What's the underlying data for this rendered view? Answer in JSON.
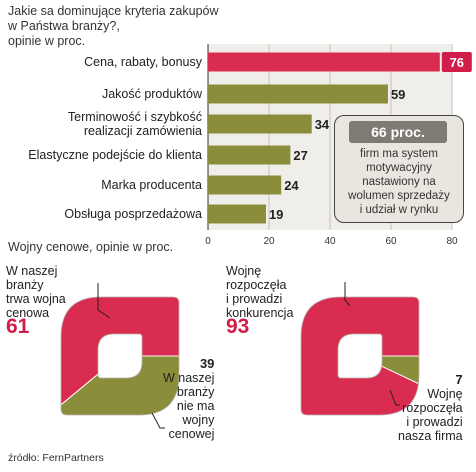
{
  "chart_data": [
    {
      "type": "bar",
      "title": "Jakie sa dominujące kryteria zakupów w Państwa branży?, opinie w proc.",
      "title_lines": [
        "Jakie sa dominujące kryteria zakupów",
        "w Państwa branży?,",
        "opinie w proc."
      ],
      "categories": [
        "Cena, rabaty, bonusy",
        "Jakość produktów",
        "Terminowość i szybkość realizacji zamówienia",
        "Elastyczne podejście do klienta",
        "Marka producenta",
        "Obsługa posprzedażowa"
      ],
      "category_lines": [
        [
          "Cena, rabaty, bonusy"
        ],
        [
          "Jakość produktów"
        ],
        [
          "Terminowość i szybkość",
          "realizacji zamówienia"
        ],
        [
          "Elastyczne podejście do klienta"
        ],
        [
          "Marka producenta"
        ],
        [
          "Obsługa posprzedażowa"
        ]
      ],
      "values": [
        76,
        59,
        34,
        27,
        24,
        19
      ],
      "value_labels": [
        "76",
        "59",
        "34",
        "27",
        "24",
        "19"
      ],
      "xlim": [
        0,
        80
      ],
      "x_ticks": [
        0,
        20,
        40,
        60,
        80
      ],
      "x_tick_labels": [
        "0",
        "20",
        "40",
        "60",
        "80"
      ],
      "grid": true,
      "colors": {
        "highlight": "#d92c50",
        "bar": "#8a8d3a"
      },
      "annotation": {
        "headline": "66 proc.",
        "text_lines": [
          "firm ma system",
          "motywacyjny",
          "nastawiony na",
          "wolumen sprzedaży",
          "i udział w rynku"
        ]
      }
    },
    {
      "type": "pie",
      "title": "Wojny cenowe, opinie w  proc.",
      "rings": [
        {
          "slices": [
            {
              "value": 61,
              "value_label": "61",
              "label_lines": [
                "W naszej",
                "branży",
                "trwa wojna",
                "cenowa"
              ],
              "color": "#d92c50"
            },
            {
              "value": 39,
              "value_label": "39",
              "label_lines": [
                "W naszej",
                "branży",
                "nie ma",
                "wojny",
                "cenowej"
              ],
              "color": "#8a8d3a"
            }
          ]
        },
        {
          "slices": [
            {
              "value": 93,
              "value_label": "93",
              "label_lines": [
                "Wojnę",
                "rozpoczęła",
                "i prowadzi",
                "konkurencja"
              ],
              "color": "#d92c50"
            },
            {
              "value": 7,
              "value_label": "7",
              "label_lines": [
                "Wojnę",
                "rozpoczęła",
                "i prowadzi",
                "nasza firma"
              ],
              "color": "#8a8d3a"
            }
          ]
        }
      ]
    }
  ],
  "source": "źródło: FernPartners"
}
